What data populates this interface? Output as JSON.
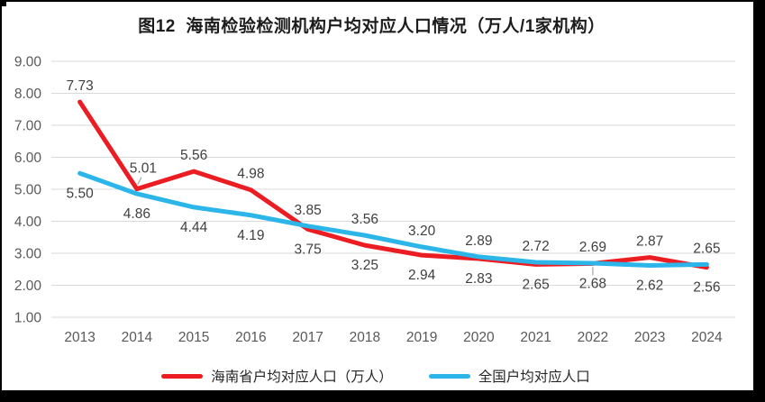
{
  "window": {
    "frame_border_color": "#000000",
    "corner_marker_color": "#000000",
    "background_color": "#ffffff"
  },
  "chart_data": {
    "type": "line",
    "title": "图12  海南检验检测机构户均对应人口情况（万人/1家机构）",
    "x": [
      "2013",
      "2014",
      "2015",
      "2016",
      "2017",
      "2018",
      "2019",
      "2020",
      "2021",
      "2022",
      "2023",
      "2024"
    ],
    "series": [
      {
        "name": "海南省户均对应人口（万人）",
        "color": "#ec1c23",
        "values": [
          7.73,
          5.01,
          5.56,
          4.98,
          3.75,
          3.25,
          2.94,
          2.83,
          2.65,
          2.68,
          2.87,
          2.56
        ],
        "label_side": [
          "above",
          "above",
          "above",
          "above",
          "below",
          "below",
          "below",
          "below",
          "below",
          "below",
          "above",
          "below"
        ],
        "leader_points": [
          1,
          9
        ],
        "label_dx": {
          "1": 7
        },
        "label_dy": {
          "1": -5
        }
      },
      {
        "name": "全国户均对应人口",
        "color": "#2bb5e9",
        "values": [
          5.5,
          4.86,
          4.44,
          4.19,
          3.85,
          3.56,
          3.2,
          2.89,
          2.72,
          2.69,
          2.62,
          2.65
        ],
        "label_side": [
          "below",
          "below",
          "below",
          "below",
          "above",
          "above",
          "above",
          "above",
          "above",
          "above",
          "below",
          "above"
        ],
        "leader_points": []
      }
    ],
    "xlabel": "",
    "ylabel": "",
    "ylim": [
      1.0,
      9.0
    ],
    "y_ticks": [
      "9.00",
      "8.00",
      "7.00",
      "6.00",
      "5.00",
      "4.00",
      "3.00",
      "2.00",
      "1.00"
    ],
    "value_label_format": "0.00",
    "grid": true,
    "legend_position": "bottom",
    "colors": {
      "gridline": "#d9d9d9",
      "axis_text": "#595959",
      "data_label_text": "#3f3f3f",
      "legend_text": "#262626",
      "title_text": "#1c1c1c",
      "leader_line": "#a6a6a6"
    }
  }
}
